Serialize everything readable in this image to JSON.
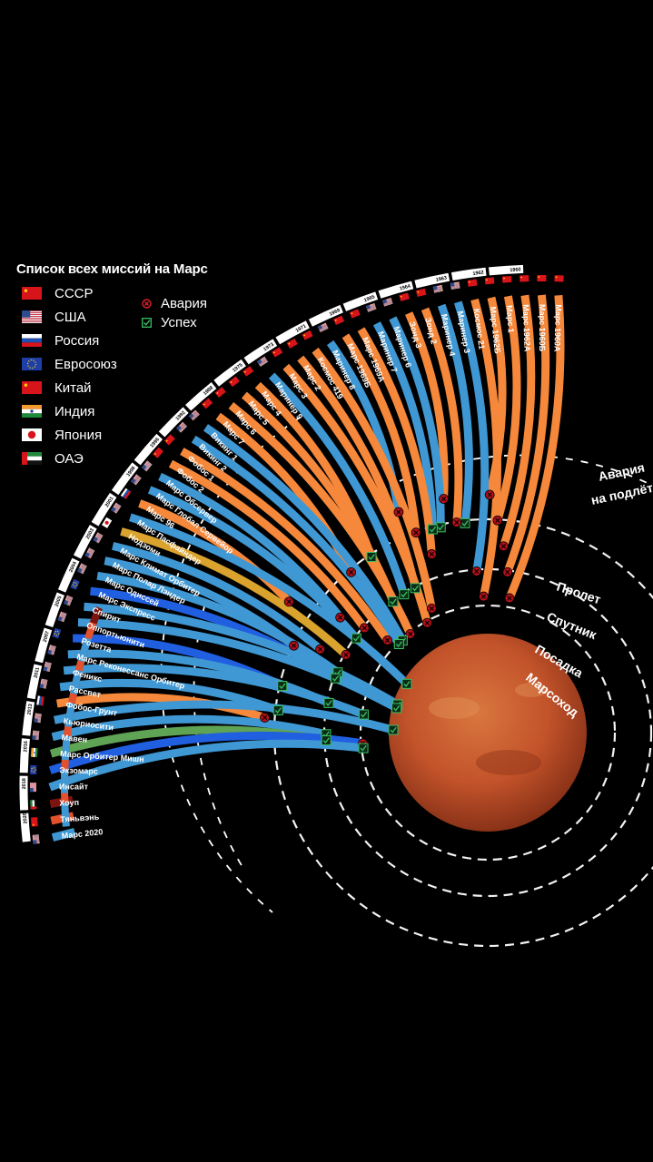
{
  "legend": {
    "title": "Список всех миссий на Марс",
    "countries": [
      {
        "name": "СССР",
        "flag": "ussr"
      },
      {
        "name": "США",
        "flag": "usa"
      },
      {
        "name": "Россия",
        "flag": "russia"
      },
      {
        "name": "Евросоюз",
        "flag": "eu"
      },
      {
        "name": "Китай",
        "flag": "china"
      },
      {
        "name": "Индия",
        "flag": "india"
      },
      {
        "name": "Япония",
        "flag": "japan"
      },
      {
        "name": "ОАЭ",
        "flag": "uae"
      }
    ],
    "status": [
      {
        "label": "Авария",
        "icon": "crash-icon"
      },
      {
        "label": "Успех",
        "icon": "success-icon"
      }
    ]
  },
  "rings": {
    "labels": [
      "Пролет",
      "Спутник",
      "Посадка",
      "Марсоход"
    ],
    "crash_on_the_way": [
      "Авария",
      "на подлёте"
    ]
  },
  "years": [
    "1960",
    "1962",
    "1963",
    "1964",
    "1965",
    "1969",
    "1971",
    "1973",
    "1975",
    "1988",
    "1992",
    "1996",
    "1998",
    "2001",
    "2003",
    "2004",
    "2005",
    "2007",
    "2011",
    "2013",
    "2016",
    "2018",
    "2020"
  ],
  "colors": {
    "orange": "#f5883a",
    "blue": "#3f98d3",
    "deep_blue": "#1f5fe0",
    "yellow": "#d9a32e",
    "green": "#5fa354",
    "dark_red": "#7d1410",
    "red_orange": "#e2502c",
    "mars": "#c2532a"
  },
  "missions": [
    {
      "name": "Марс 1960А",
      "flag": "ussr",
      "color": "orange",
      "outcome": "crash-en-route"
    },
    {
      "name": "Марс 1960Б",
      "flag": "ussr",
      "color": "orange",
      "outcome": "crash-en-route"
    },
    {
      "name": "Марс 1962А",
      "flag": "ussr",
      "color": "orange",
      "outcome": "crash-en-route"
    },
    {
      "name": "Марс 1",
      "flag": "ussr",
      "color": "orange",
      "outcome": "crash-en-route"
    },
    {
      "name": "Марс 1962Б",
      "flag": "ussr",
      "color": "orange",
      "outcome": "crash-en-route"
    },
    {
      "name": "Космос 21",
      "flag": "ussr",
      "color": "orange",
      "outcome": "crash-en-route"
    },
    {
      "name": "Маринер 3",
      "flag": "usa",
      "color": "blue",
      "outcome": "crash-en-route"
    },
    {
      "name": "Маринер 4",
      "flag": "usa",
      "color": "blue",
      "outcome": "flyby-success"
    },
    {
      "name": "Зонд 2",
      "flag": "ussr",
      "color": "orange",
      "outcome": "crash-en-route"
    },
    {
      "name": "Зонд 3",
      "flag": "ussr",
      "color": "orange",
      "outcome": "crash-en-route"
    },
    {
      "name": "Маринер 6",
      "flag": "usa",
      "color": "blue",
      "outcome": "flyby-success"
    },
    {
      "name": "Маринер 7",
      "flag": "usa",
      "color": "blue",
      "outcome": "flyby-success"
    },
    {
      "name": "Марс 1969А",
      "flag": "ussr",
      "color": "orange",
      "outcome": "crash-en-route"
    },
    {
      "name": "Марс 1969Б",
      "flag": "ussr",
      "color": "orange",
      "outcome": "crash-en-route"
    },
    {
      "name": "Маринер 8",
      "flag": "usa",
      "color": "blue",
      "outcome": "crash-en-route"
    },
    {
      "name": "Космос 419",
      "flag": "ussr",
      "color": "orange",
      "outcome": "crash-en-route"
    },
    {
      "name": "Марс 2",
      "flag": "ussr",
      "color": "orange",
      "outcome": "orbit-success"
    },
    {
      "name": "Марс 3",
      "flag": "ussr",
      "color": "orange",
      "outcome": "landing-crash"
    },
    {
      "name": "Маринер 9",
      "flag": "usa",
      "color": "blue",
      "outcome": "orbit-success"
    },
    {
      "name": "Марс 4",
      "flag": "ussr",
      "color": "orange",
      "outcome": "flyby-success"
    },
    {
      "name": "Марс 5",
      "flag": "ussr",
      "color": "orange",
      "outcome": "orbit-success"
    },
    {
      "name": "Марс 6",
      "flag": "ussr",
      "color": "orange",
      "outcome": "landing-crash"
    },
    {
      "name": "Марс 7",
      "flag": "ussr",
      "color": "orange",
      "outcome": "flyby-crash"
    },
    {
      "name": "Викинг 1",
      "flag": "usa",
      "color": "blue",
      "outcome": "landing-success"
    },
    {
      "name": "Викинг 2",
      "flag": "usa",
      "color": "blue",
      "outcome": "landing-success"
    },
    {
      "name": "Фобос 1",
      "flag": "ussr",
      "color": "orange",
      "outcome": "crash-en-route"
    },
    {
      "name": "Фобос 2",
      "flag": "ussr",
      "color": "orange",
      "outcome": "orbit-crash"
    },
    {
      "name": "Марс Обсервер",
      "flag": "usa",
      "color": "blue",
      "outcome": "crash-en-route"
    },
    {
      "name": "Марс Глобал Сервейор",
      "flag": "usa",
      "color": "blue",
      "outcome": "orbit-success"
    },
    {
      "name": "Марс 96",
      "flag": "russia",
      "color": "orange",
      "outcome": "crash-en-route"
    },
    {
      "name": "Марс Пасфайндер",
      "flag": "usa",
      "color": "blue",
      "outcome": "rover-success"
    },
    {
      "name": "Нодзоми",
      "flag": "japan",
      "color": "yellow",
      "outcome": "crash-en-route"
    },
    {
      "name": "Марс Климат Орбитер",
      "flag": "usa",
      "color": "blue",
      "outcome": "crash-en-route"
    },
    {
      "name": "Марс Полар Лэндер",
      "flag": "usa",
      "color": "blue",
      "outcome": "crash-en-route"
    },
    {
      "name": "Марс Одиссей",
      "flag": "usa",
      "color": "blue",
      "outcome": "orbit-success"
    },
    {
      "name": "Марс Экспресс",
      "flag": "eu",
      "color": "deep_blue",
      "outcome": "orbit-success"
    },
    {
      "name": "Спирит",
      "flag": "usa",
      "color": "blue",
      "outcome": "rover-success"
    },
    {
      "name": "Оппортьюнити",
      "flag": "usa",
      "color": "blue",
      "outcome": "rover-success"
    },
    {
      "name": "Розетта",
      "flag": "eu",
      "color": "deep_blue",
      "outcome": "flyby-success"
    },
    {
      "name": "Марс Реконессанс Орбитер",
      "flag": "usa",
      "color": "blue",
      "outcome": "orbit-success"
    },
    {
      "name": "Феникс",
      "flag": "usa",
      "color": "blue",
      "outcome": "landing-success"
    },
    {
      "name": "Рассвет",
      "flag": "usa",
      "color": "blue",
      "outcome": "flyby-success"
    },
    {
      "name": "Фобос-Грунт",
      "flag": "russia",
      "color": "orange",
      "outcome": "crash-en-route"
    },
    {
      "name": "Кьюриосити",
      "flag": "usa",
      "color": "blue",
      "outcome": "rover-success"
    },
    {
      "name": "Мавен",
      "flag": "usa",
      "color": "blue",
      "outcome": "orbit-success"
    },
    {
      "name": "Марс Орбитер Мишн",
      "flag": "india",
      "color": "green",
      "outcome": "orbit-success"
    },
    {
      "name": "Экзомарс",
      "flag": "eu",
      "color": "deep_blue",
      "outcome": "landing-crash"
    },
    {
      "name": "Инсайт",
      "flag": "usa",
      "color": "blue",
      "outcome": "landing-success"
    },
    {
      "name": "Хоуп",
      "flag": "uae",
      "color": "dark_red",
      "outcome": "pending"
    },
    {
      "name": "Тяньвэнь",
      "flag": "china",
      "color": "red_orange",
      "outcome": "pending"
    },
    {
      "name": "Марс 2020",
      "flag": "usa",
      "color": "blue",
      "outcome": "pending"
    }
  ]
}
